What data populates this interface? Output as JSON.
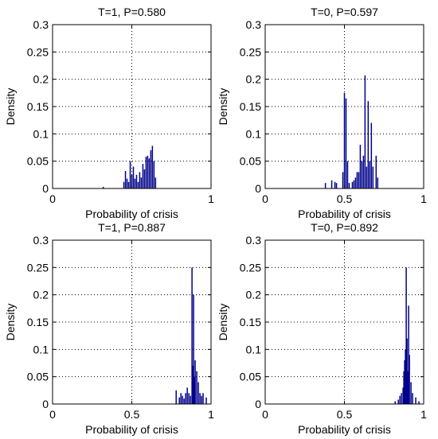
{
  "figure": {
    "style": {
      "axis_color": "#000000",
      "bar_color": "#00008B",
      "grid_color": "#000000"
    }
  },
  "chart_data": [
    {
      "type": "bar",
      "title": "T=1, P=0.580",
      "xlabel": "Probability of crisis",
      "ylabel": "Density",
      "xlim": [
        0,
        1
      ],
      "ylim": [
        0,
        0.3
      ],
      "xticks": [
        0,
        0.5,
        1
      ],
      "xtick_labels": [
        "0",
        "",
        "1"
      ],
      "yticks": [
        0,
        0.05,
        0.1,
        0.15,
        0.2,
        0.25,
        0.3
      ],
      "ytick_labels": [
        "0",
        "0.05",
        "0.1",
        "0.15",
        "0.2",
        "0.25",
        "0.3"
      ],
      "grid": true,
      "bars": [
        [
          0.32,
          0.003
        ],
        [
          0.45,
          0.012
        ],
        [
          0.46,
          0.032
        ],
        [
          0.47,
          0.018
        ],
        [
          0.48,
          0.012
        ],
        [
          0.49,
          0.05
        ],
        [
          0.5,
          0.025
        ],
        [
          0.51,
          0.04
        ],
        [
          0.52,
          0.018
        ],
        [
          0.53,
          0.025
        ],
        [
          0.54,
          0.012
        ],
        [
          0.55,
          0.03
        ],
        [
          0.56,
          0.02
        ],
        [
          0.57,
          0.045
        ],
        [
          0.58,
          0.035
        ],
        [
          0.59,
          0.058
        ],
        [
          0.6,
          0.06
        ],
        [
          0.61,
          0.055
        ],
        [
          0.62,
          0.07
        ],
        [
          0.63,
          0.078
        ],
        [
          0.64,
          0.05
        ],
        [
          0.65,
          0.02
        ]
      ]
    },
    {
      "type": "bar",
      "title": "T=0, P=0.597",
      "xlabel": "Probability of crisis",
      "ylabel": "Density",
      "xlim": [
        0,
        1
      ],
      "ylim": [
        0,
        0.3
      ],
      "xticks": [
        0,
        0.5,
        1
      ],
      "xtick_labels": [
        "0",
        "0.5",
        "1"
      ],
      "yticks": [
        0,
        0.05,
        0.1,
        0.15,
        0.2,
        0.25,
        0.3
      ],
      "ytick_labels": [
        "0",
        "0.05",
        "0.1",
        "0.15",
        "0.2",
        "0.25",
        "0.3"
      ],
      "grid": true,
      "bars": [
        [
          0.38,
          0.01
        ],
        [
          0.42,
          0.015
        ],
        [
          0.44,
          0.012
        ],
        [
          0.45,
          0.01
        ],
        [
          0.49,
          0.03
        ],
        [
          0.5,
          0.175
        ],
        [
          0.51,
          0.165
        ],
        [
          0.52,
          0.05
        ],
        [
          0.53,
          0.01
        ],
        [
          0.55,
          0.012
        ],
        [
          0.56,
          0.015
        ],
        [
          0.57,
          0.02
        ],
        [
          0.58,
          0.03
        ],
        [
          0.59,
          0.03
        ],
        [
          0.6,
          0.08
        ],
        [
          0.61,
          0.05
        ],
        [
          0.62,
          0.06
        ],
        [
          0.63,
          0.207
        ],
        [
          0.64,
          0.04
        ],
        [
          0.65,
          0.16
        ],
        [
          0.66,
          0.05
        ],
        [
          0.67,
          0.12
        ],
        [
          0.68,
          0.04
        ],
        [
          0.7,
          0.06
        ],
        [
          0.71,
          0.02
        ]
      ]
    },
    {
      "type": "bar",
      "title": "T=1, P=0.887",
      "xlabel": "Probability of crisis",
      "ylabel": "Density",
      "xlim": [
        0,
        1
      ],
      "ylim": [
        0,
        0.3
      ],
      "xticks": [
        0,
        0.5,
        1
      ],
      "xtick_labels": [
        "0",
        "0.5",
        "1"
      ],
      "yticks": [
        0,
        0.05,
        0.1,
        0.15,
        0.2,
        0.25,
        0.3
      ],
      "ytick_labels": [
        "0",
        "0.05",
        "0.1",
        "0.15",
        "0.2",
        "0.25",
        "0.3"
      ],
      "grid": true,
      "bars": [
        [
          0.78,
          0.025
        ],
        [
          0.8,
          0.012
        ],
        [
          0.81,
          0.02
        ],
        [
          0.82,
          0.015
        ],
        [
          0.83,
          0.01
        ],
        [
          0.84,
          0.02
        ],
        [
          0.85,
          0.03
        ],
        [
          0.86,
          0.02
        ],
        [
          0.87,
          0.015
        ],
        [
          0.88,
          0.25
        ],
        [
          0.885,
          0.07
        ],
        [
          0.89,
          0.2
        ],
        [
          0.895,
          0.05
        ],
        [
          0.9,
          0.08
        ],
        [
          0.91,
          0.06
        ],
        [
          0.92,
          0.04
        ],
        [
          0.93,
          0.02
        ],
        [
          0.94,
          0.015
        ],
        [
          0.95,
          0.02
        ],
        [
          0.97,
          0.012
        ]
      ]
    },
    {
      "type": "bar",
      "title": "T=0, P=0.892",
      "xlabel": "Probability of crisis",
      "ylabel": "Density",
      "xlim": [
        0,
        1
      ],
      "ylim": [
        0,
        0.3
      ],
      "xticks": [
        0,
        0.5,
        1
      ],
      "xtick_labels": [
        "0",
        "0.5",
        "1"
      ],
      "yticks": [
        0,
        0.05,
        0.1,
        0.15,
        0.2,
        0.25,
        0.3
      ],
      "ytick_labels": [
        "0",
        "0.05",
        "0.1",
        "0.15",
        "0.2",
        "0.25",
        "0.3"
      ],
      "grid": true,
      "bars": [
        [
          0.82,
          0.005
        ],
        [
          0.84,
          0.008
        ],
        [
          0.85,
          0.015
        ],
        [
          0.86,
          0.02
        ],
        [
          0.87,
          0.03
        ],
        [
          0.875,
          0.06
        ],
        [
          0.88,
          0.08
        ],
        [
          0.885,
          0.1
        ],
        [
          0.89,
          0.25
        ],
        [
          0.895,
          0.12
        ],
        [
          0.9,
          0.06
        ],
        [
          0.905,
          0.18
        ],
        [
          0.91,
          0.09
        ],
        [
          0.92,
          0.04
        ],
        [
          0.93,
          0.02
        ],
        [
          0.95,
          0.012
        ],
        [
          0.97,
          0.005
        ]
      ]
    }
  ]
}
